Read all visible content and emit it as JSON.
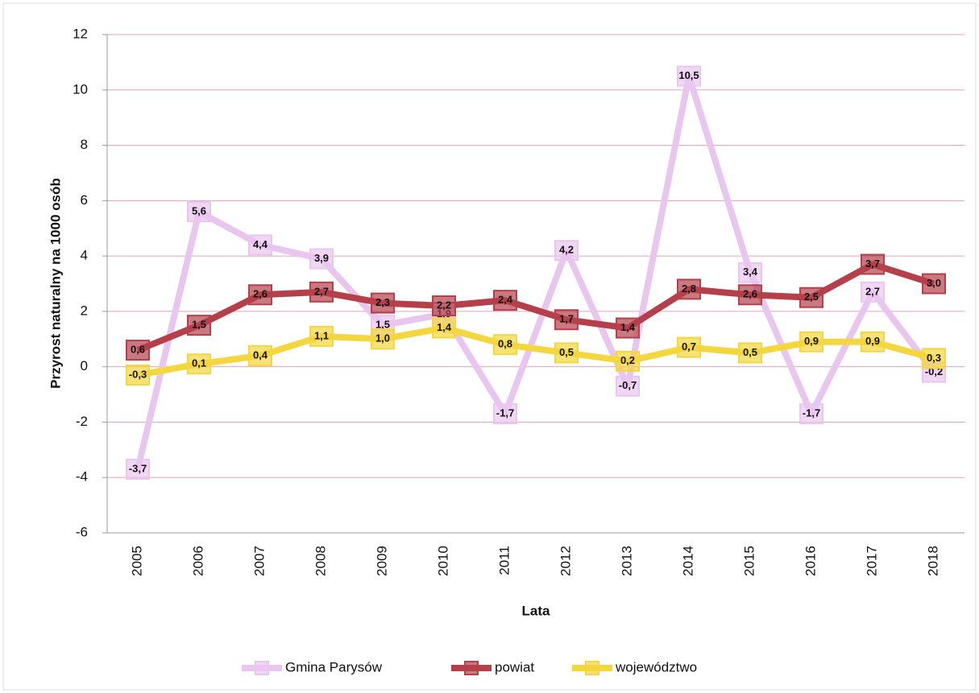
{
  "chart_data": {
    "type": "line",
    "x_label": "Lata",
    "y_label": "Przyrost naturalny na 1000 osób",
    "categories": [
      "2005",
      "2006",
      "2007",
      "2008",
      "2009",
      "2010",
      "2011",
      "2012",
      "2013",
      "2014",
      "2015",
      "2016",
      "2017",
      "2018"
    ],
    "series": [
      {
        "name": "Gmina Parysów",
        "color": "#e9c6f0",
        "values": [
          -3.7,
          5.6,
          4.4,
          3.9,
          1.5,
          1.9,
          -1.7,
          4.2,
          -0.7,
          10.5,
          3.4,
          -1.7,
          2.7,
          -0.2
        ],
        "value_labels": [
          "-3,7",
          "5,6",
          "4,4",
          "3,9",
          "1,5",
          "1,9",
          "-1,7",
          "4,2",
          "-0,7",
          "10,5",
          "3,4",
          "-1,7",
          "2,7",
          "-0,2"
        ]
      },
      {
        "name": "powiat",
        "color": "#b5404a",
        "values": [
          0.6,
          1.5,
          2.6,
          2.7,
          2.3,
          2.2,
          2.4,
          1.7,
          1.4,
          2.8,
          2.6,
          2.5,
          3.7,
          3.0
        ],
        "value_labels": [
          "0,6",
          "1,5",
          "2,6",
          "2,7",
          "2,3",
          "2,2",
          "2,4",
          "1,7",
          "1,4",
          "2,8",
          "2,6",
          "2,5",
          "3,7",
          "3,0"
        ]
      },
      {
        "name": "województwo",
        "color": "#f4d63e",
        "values": [
          -0.3,
          0.1,
          0.4,
          1.1,
          1.0,
          1.4,
          0.8,
          0.5,
          0.2,
          0.7,
          0.5,
          0.9,
          0.9,
          0.3
        ],
        "value_labels": [
          "-0,3",
          "0,1",
          "0,4",
          "1,1",
          "1,0",
          "1,4",
          "0,8",
          "0,5",
          "0,2",
          "0,7",
          "0,5",
          "0,9",
          "0,9",
          "0,3"
        ]
      }
    ],
    "ylim": [
      -6,
      12
    ],
    "yticks": [
      -6,
      -4,
      -2,
      0,
      2,
      4,
      6,
      8,
      10,
      12
    ],
    "grid": true,
    "legend": "bottom"
  }
}
